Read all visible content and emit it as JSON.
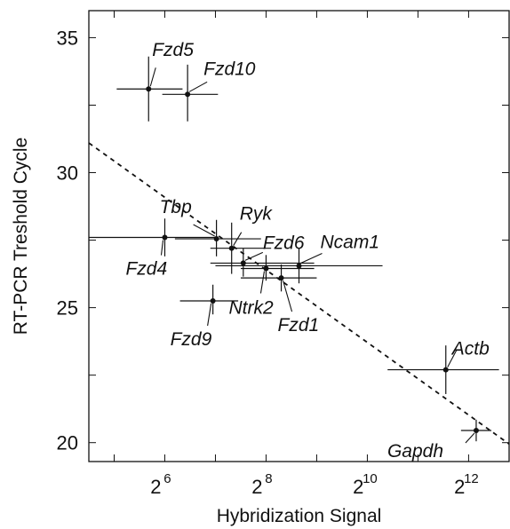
{
  "chart_data": {
    "type": "scatter",
    "xlabel": "Hybridization Signal",
    "ylabel": "RT-PCR Treshold Cycle",
    "x_scale": "log2",
    "xlim_exponent": [
      4.5,
      12.8
    ],
    "ylim": [
      19.3,
      36
    ],
    "x_ticks": [
      {
        "base": "2",
        "exp": "6",
        "value": 6
      },
      {
        "base": "2",
        "exp": "8",
        "value": 8
      },
      {
        "base": "2",
        "exp": "10",
        "value": 10
      },
      {
        "base": "2",
        "exp": "12",
        "value": 12
      }
    ],
    "y_ticks": [
      {
        "label": "20",
        "value": 20
      },
      {
        "label": "25",
        "value": 25
      },
      {
        "label": "30",
        "value": 30
      },
      {
        "label": "35",
        "value": 35
      }
    ],
    "grid": false,
    "points": [
      {
        "name": "Fzd5",
        "x": 5.68,
        "xerr": [
          5.05,
          6.35
        ],
        "y": 33.1,
        "yerr": [
          31.9,
          34.3
        ]
      },
      {
        "name": "Fzd10",
        "x": 6.45,
        "xerr": [
          5.95,
          7.05
        ],
        "y": 32.9,
        "yerr": [
          31.9,
          34.0
        ]
      },
      {
        "name": "Tbp",
        "x": 7.02,
        "xerr": [
          6.2,
          7.9
        ],
        "y": 27.55,
        "yerr": [
          26.9,
          28.25
        ]
      },
      {
        "name": "Fzd4",
        "x": 6.0,
        "xerr": [
          4.5,
          7.05
        ],
        "y": 27.6,
        "yerr": [
          26.9,
          28.3
        ]
      },
      {
        "name": "Ryk",
        "x": 7.32,
        "xerr": [
          6.9,
          8.1
        ],
        "y": 27.2,
        "yerr": [
          26.25,
          28.15
        ]
      },
      {
        "name": "Fzd6",
        "x": 7.55,
        "xerr": [
          6.9,
          8.95
        ],
        "y": 26.65,
        "yerr": [
          26.15,
          27.2
        ]
      },
      {
        "name": "Ncam1",
        "x": 8.65,
        "xerr": [
          7.0,
          10.3
        ],
        "y": 26.55,
        "yerr": [
          25.9,
          27.2
        ]
      },
      {
        "name": "Ntrk2",
        "x": 8.0,
        "xerr": [
          7.5,
          8.95
        ],
        "y": 26.45,
        "yerr": [
          26.0,
          26.95
        ]
      },
      {
        "name": "Fzd1",
        "x": 8.3,
        "xerr": [
          7.5,
          9.0
        ],
        "y": 26.1,
        "yerr": [
          25.6,
          26.6
        ]
      },
      {
        "name": "Fzd9",
        "x": 6.95,
        "xerr": [
          6.3,
          7.45
        ],
        "y": 25.25,
        "yerr": [
          24.75,
          25.85
        ]
      },
      {
        "name": "Actb",
        "x": 11.55,
        "xerr": [
          10.4,
          12.6
        ],
        "y": 22.7,
        "yerr": [
          21.8,
          23.6
        ]
      },
      {
        "name": "Gapdh",
        "x": 12.15,
        "xerr": [
          11.85,
          12.45
        ],
        "y": 20.45,
        "yerr": [
          20.05,
          20.85
        ]
      }
    ],
    "trendline": {
      "style": "dashed",
      "x_exp": [
        4.5,
        12.8
      ],
      "y": [
        31.1,
        19.95
      ]
    }
  }
}
